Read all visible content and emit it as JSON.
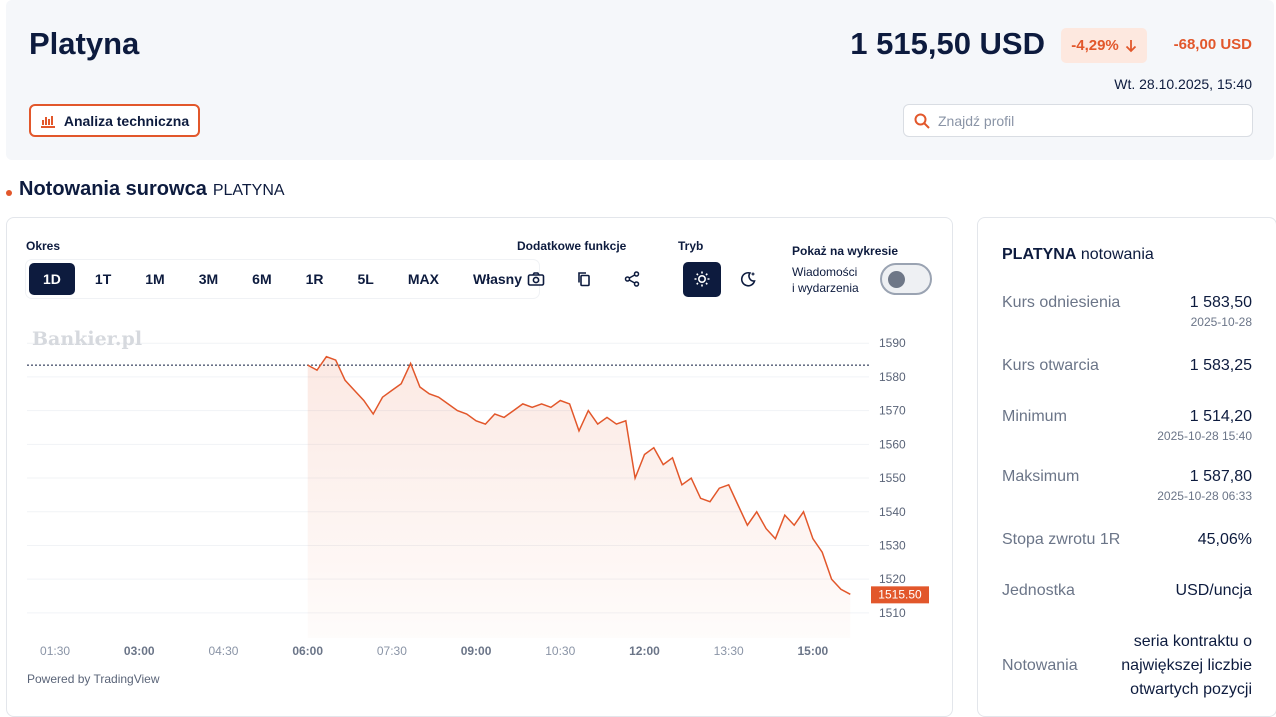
{
  "header": {
    "title": "Platyna",
    "price": "1 515,50 USD",
    "change_pct": "-4,29%",
    "change_abs": "-68,00 USD",
    "datetime": "Wt. 28.10.2025, 15:40",
    "ta_button": "Analiza techniczna",
    "search_placeholder": "Znajdź profil"
  },
  "section": {
    "title": "Notowania surowca",
    "subtitle": "PLATYNA"
  },
  "chart_panel": {
    "period_label": "Okres",
    "periods": [
      "1D",
      "1T",
      "1M",
      "3M",
      "6M",
      "1R",
      "5L",
      "MAX",
      "Własny"
    ],
    "active_period": "1D",
    "extra_label": "Dodatkowe funkcje",
    "mode_label": "Tryb",
    "show_label": "Pokaż na wykresie",
    "events_line1": "Wiadomości",
    "events_line2": "i wydarzenia",
    "events_toggle": "off",
    "watermark": "Bankier.pl",
    "powered": "Powered by TradingView"
  },
  "chart_data": {
    "type": "area",
    "title": "",
    "xlabel": "",
    "ylabel": "",
    "ylim": [
      1507,
      1596
    ],
    "x_ticks": [
      "01:30",
      "03:00",
      "04:30",
      "06:00",
      "07:30",
      "09:00",
      "10:30",
      "12:00",
      "13:30",
      "15:00"
    ],
    "y_ticks": [
      1510,
      1520,
      1530,
      1540,
      1550,
      1560,
      1570,
      1580,
      1590
    ],
    "reference_line": 1583.5,
    "last_value_label": "1515.50",
    "series": [
      {
        "x": [
          "06:00",
          "06:10",
          "06:20",
          "06:30",
          "06:40",
          "06:50",
          "07:00",
          "07:10",
          "07:20",
          "07:30",
          "07:40",
          "07:50",
          "08:00",
          "08:10",
          "08:20",
          "08:30",
          "08:40",
          "08:50",
          "09:00",
          "09:10",
          "09:20",
          "09:30",
          "09:40",
          "09:50",
          "10:00",
          "10:10",
          "10:20",
          "10:30",
          "10:40",
          "10:50",
          "11:00",
          "11:10",
          "11:20",
          "11:30",
          "11:40",
          "11:50",
          "12:00",
          "12:10",
          "12:20",
          "12:30",
          "12:40",
          "12:50",
          "13:00",
          "13:10",
          "13:20",
          "13:30",
          "13:40",
          "13:50",
          "14:00",
          "14:10",
          "14:20",
          "14:30",
          "14:40",
          "14:50",
          "15:00",
          "15:10",
          "15:20",
          "15:30",
          "15:40"
        ],
        "values": [
          1583.5,
          1582,
          1586,
          1585,
          1579,
          1576,
          1573,
          1569,
          1574,
          1576,
          1578,
          1584,
          1577,
          1575,
          1574,
          1572,
          1570,
          1569,
          1567,
          1566,
          1569,
          1568,
          1570,
          1572,
          1571,
          1572,
          1571,
          1573,
          1572,
          1564,
          1570,
          1566,
          1568,
          1566,
          1567,
          1550,
          1557,
          1559,
          1554,
          1556,
          1548,
          1550,
          1544,
          1543,
          1547,
          1548,
          1542,
          1536,
          1540,
          1535,
          1532,
          1539,
          1536,
          1540,
          1532,
          1528,
          1520,
          1517,
          1515.5
        ]
      }
    ]
  },
  "stats": {
    "title_bold": "PLATYNA",
    "title_rest": "notowania",
    "rows": [
      {
        "label": "Kurs odniesienia",
        "value": "1 583,50",
        "sub": "2025-10-28"
      },
      {
        "label": "Kurs otwarcia",
        "value": "1 583,25",
        "sub": ""
      },
      {
        "label": "Minimum",
        "value": "1 514,20",
        "sub": "2025-10-28 15:40"
      },
      {
        "label": "Maksimum",
        "value": "1 587,80",
        "sub": "2025-10-28 06:33"
      },
      {
        "label": "Stopa zwrotu 1R",
        "value": "45,06%",
        "sub": ""
      },
      {
        "label": "Jednostka",
        "value": "USD/uncja",
        "sub": ""
      }
    ],
    "notowania_label": "Notowania",
    "notowania_value": "seria kontraktu o największej liczbie otwartych pozycji"
  },
  "colors": {
    "accent": "#e2572b",
    "navy": "#0d1b3e",
    "header_bg": "#f5f7fa"
  }
}
